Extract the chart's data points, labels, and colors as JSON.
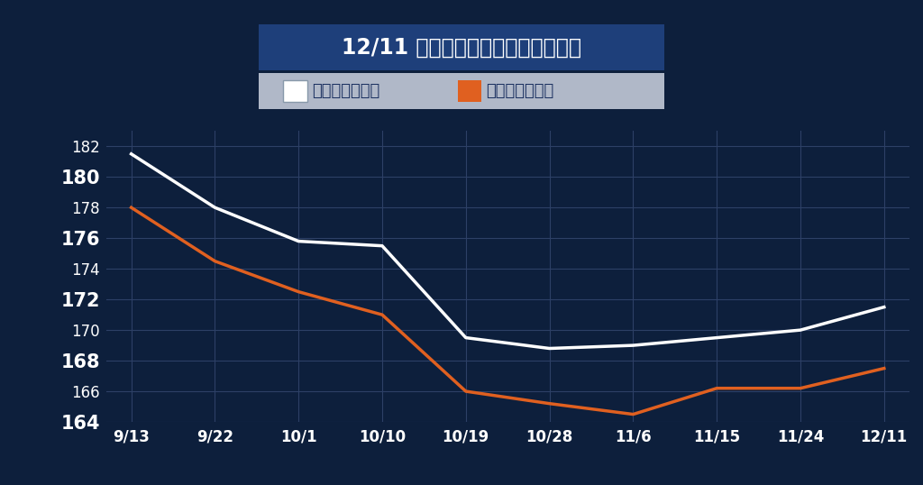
{
  "title": "12/11 全国のガソリン平均価格推移",
  "legend_cash": "レギュラー現金",
  "legend_member": "レギュラー会員",
  "x_labels": [
    "9/13",
    "9/22",
    "10/1",
    "10/10",
    "10/19",
    "10/28",
    "11/6",
    "11/15",
    "11/24",
    "12/11"
  ],
  "cash_prices": [
    181.5,
    178.0,
    175.8,
    175.5,
    169.5,
    168.8,
    169.0,
    169.5,
    170.0,
    171.5
  ],
  "member_prices": [
    178.0,
    174.5,
    172.5,
    171.0,
    166.0,
    165.2,
    164.5,
    166.2,
    166.2,
    167.5
  ],
  "ylim": [
    164,
    183
  ],
  "yticks": [
    164,
    166,
    168,
    170,
    172,
    174,
    176,
    178,
    180,
    182
  ],
  "yticks_bold": [
    164,
    168,
    172,
    176,
    180
  ],
  "bg_color": "#0d1f3c",
  "grid_color": "#2d4066",
  "cash_color": "#ffffff",
  "member_color": "#e06020",
  "title_bg_color": "#1e3f7a",
  "legend_bg_color": "#b0b8c8",
  "text_color": "#ffffff",
  "line_width": 2.5,
  "title_fontsize": 17,
  "tick_fontsize": 12,
  "tick_fontsize_bold": 15,
  "legend_fontsize": 13
}
